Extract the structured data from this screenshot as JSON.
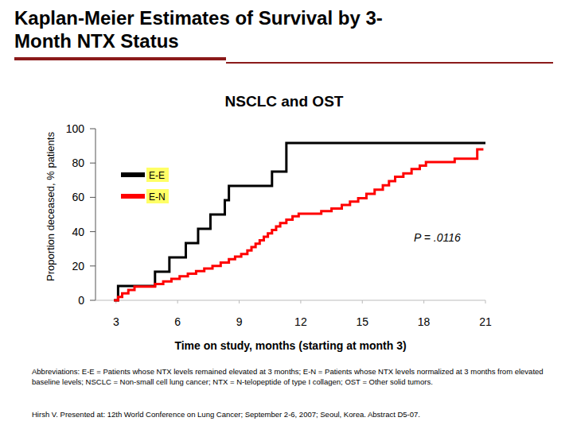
{
  "chart_data": {
    "type": "line",
    "title": "Kaplan-Meier Estimates of Survival by 3-Month NTX Status",
    "subtitle": "NSCLC and OST",
    "x_label": "Time on study, months (starting at month 3)",
    "y_label": "Proportion deceased, % patients",
    "annotation": "P = .0116",
    "notes": "Abbreviations: E-E = Patients whose NTX levels remained elevated at 3 months; E-N = Patients whose NTX levels normalized at 3 months from elevated baseline levels; NSCLC = Non-small cell lung cancer; NTX = N-telopeptide of type I collagen; OST = Other solid tumors.",
    "source": "Hirsh V. Presented at: 12th World Conference on Lung Cancer; September 2-6, 2007; Seoul, Korea. Abstract D5-07.",
    "xlim": [
      2,
      21
    ],
    "xticks": [
      3,
      6,
      9,
      12,
      15,
      18,
      21
    ],
    "ylim": [
      0,
      100
    ],
    "yticks": [
      0,
      20,
      40,
      60,
      80,
      100
    ],
    "grid": false,
    "legend": "upper-left",
    "series": [
      {
        "name": "E-E",
        "color": "#000000",
        "line_style": "step",
        "x": [
          2.9,
          3.1,
          4.9,
          5.6,
          6.4,
          7.0,
          7.6,
          8.3,
          8.5,
          10.6,
          11.3,
          21
        ],
        "values": [
          0,
          8.3,
          16.7,
          25,
          33.3,
          41.7,
          50,
          58.3,
          66.7,
          75,
          91.7,
          91.7
        ]
      },
      {
        "name": "E-N",
        "color": "#ff0000",
        "line_style": "step",
        "x": [
          2.9,
          3.1,
          3.3,
          3.6,
          3.9,
          4.9,
          5.3,
          5.7,
          6.1,
          6.5,
          6.9,
          7.3,
          7.7,
          8.1,
          8.5,
          8.8,
          9.1,
          9.4,
          9.6,
          9.8,
          10.0,
          10.2,
          10.4,
          10.6,
          10.8,
          11.0,
          11.3,
          11.6,
          11.9,
          13.0,
          13.5,
          14.0,
          14.4,
          14.8,
          15.2,
          15.6,
          16.0,
          16.3,
          16.6,
          17.0,
          17.4,
          17.8,
          18.1,
          19.5,
          20.6,
          20.9
        ],
        "values": [
          0,
          2,
          4,
          6,
          8,
          9.5,
          11,
          12.5,
          14,
          15.5,
          17,
          18.5,
          20,
          22,
          24,
          25.5,
          27,
          29,
          31,
          33,
          35,
          37,
          39,
          41,
          43,
          45,
          47,
          49,
          50.5,
          52,
          53.5,
          55.5,
          57.5,
          59.5,
          62,
          64.5,
          67,
          69.5,
          72,
          74,
          76.5,
          78.5,
          80.5,
          82.5,
          88,
          88
        ]
      }
    ]
  }
}
